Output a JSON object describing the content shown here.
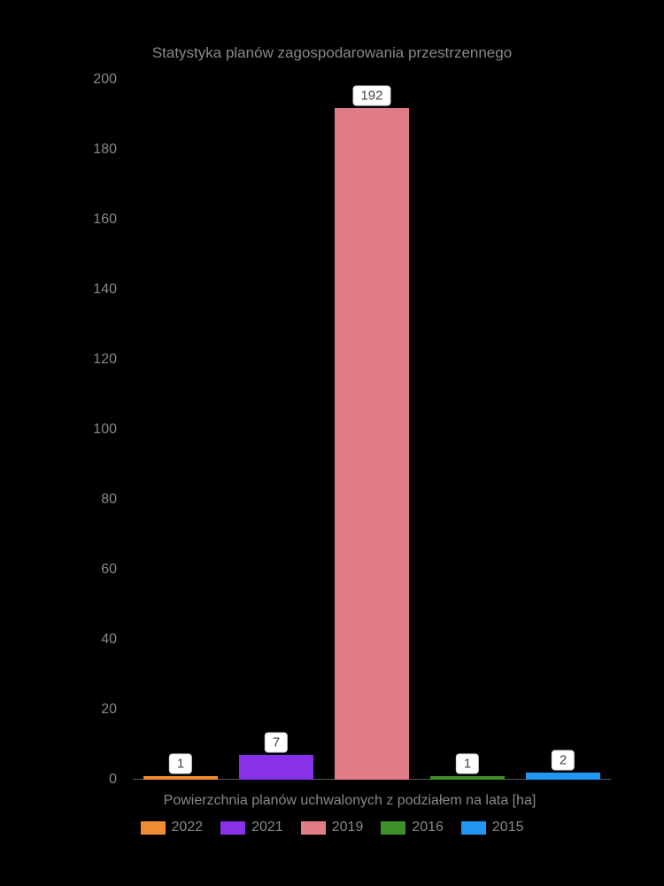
{
  "chart": {
    "type": "bar",
    "title": "Statystyka planów zagospodarowania przestrzennego",
    "title_fontsize": 17,
    "title_color": "#888888",
    "background_color": "#000000",
    "label_fontsize": 16,
    "label_color": "#888888",
    "x_label": "Powierzchnia planów uchwalonych z podziałem na lata [ha]",
    "ylim": [
      0,
      200
    ],
    "ytick_step": 20,
    "yticks": [
      0,
      20,
      40,
      60,
      80,
      100,
      120,
      140,
      160,
      180,
      200
    ],
    "bars": [
      {
        "year": "2022",
        "value": 1,
        "color": "#f08c32"
      },
      {
        "year": "2021",
        "value": 7,
        "color": "#8731e8"
      },
      {
        "year": "2019",
        "value": 192,
        "color": "#e27d88"
      },
      {
        "year": "2016",
        "value": 1,
        "color": "#3f8f29"
      },
      {
        "year": "2015",
        "value": 2,
        "color": "#2196f3"
      }
    ],
    "bar_label_bg": "#ffffff",
    "bar_label_color": "#444444",
    "bar_label_fontsize": 15,
    "legend_swatch_w": 28,
    "legend_swatch_h": 15
  }
}
